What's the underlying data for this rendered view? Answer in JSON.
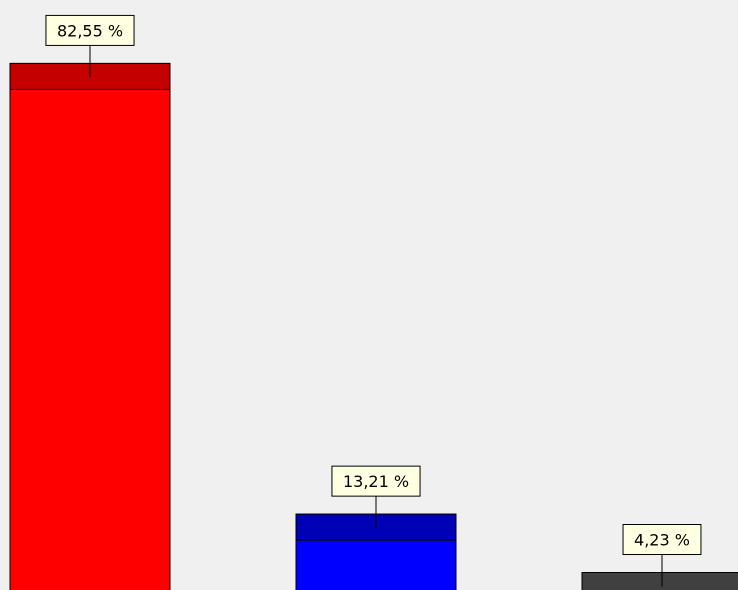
{
  "chart_data": {
    "type": "bar",
    "categories": [
      "",
      "",
      ""
    ],
    "values": [
      82.55,
      13.21,
      4.23
    ],
    "data_labels": [
      "82,55 %",
      "13,21 %",
      "4,23 %"
    ],
    "title": "",
    "xlabel": "",
    "ylabel": "",
    "grid": false,
    "legend": "none",
    "series_colors": [
      {
        "face": "#ff0000",
        "cap": "#c40000"
      },
      {
        "face": "#0000ff",
        "cap": "#0000b4"
      },
      {
        "face": "#808080",
        "cap": "#404040"
      }
    ],
    "label_box_color": "#ffffe1"
  }
}
